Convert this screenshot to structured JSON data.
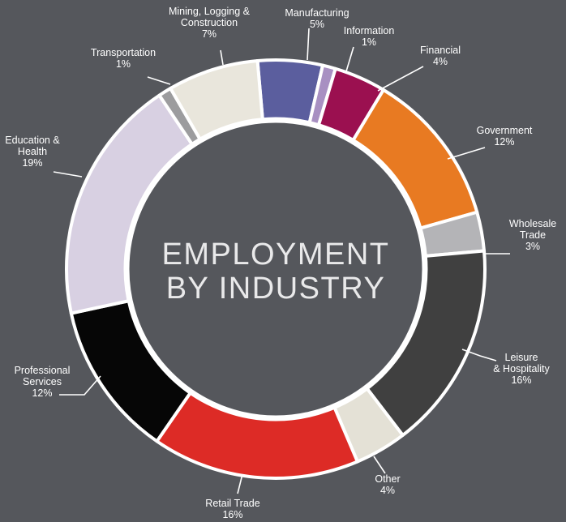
{
  "chart_data": {
    "type": "pie",
    "title_lines": [
      "EMPLOYMENT",
      "BY INDUSTRY"
    ],
    "categories": [
      "Manufacturing",
      "Information",
      "Financial",
      "Government",
      "Wholesale Trade",
      "Leisure & Hospitality",
      "Other",
      "Retail Trade",
      "Professional Services",
      "Education & Health",
      "Transportation",
      "Mining, Logging & Construction"
    ],
    "values": [
      5,
      1,
      4,
      12,
      3,
      16,
      4,
      16,
      12,
      19,
      1,
      7
    ],
    "value_labels": [
      "5%",
      "1%",
      "4%",
      "12%",
      "3%",
      "16%",
      "4%",
      "16%",
      "12%",
      "19%",
      "1%",
      "7%"
    ],
    "label_lines": [
      [
        "Manufacturing"
      ],
      [
        "Information"
      ],
      [
        "Financial"
      ],
      [
        "Government"
      ],
      [
        "Wholesale",
        "Trade"
      ],
      [
        "Leisure",
        "& Hospitality"
      ],
      [
        "Other"
      ],
      [
        "Retail Trade"
      ],
      [
        "Professional",
        "Services"
      ],
      [
        "Education &",
        "Health"
      ],
      [
        "Transportation"
      ],
      [
        "Mining, Logging &",
        "Construction"
      ]
    ],
    "colors": [
      "#5b5e9e",
      "#a890c2",
      "#9b1050",
      "#e87a22",
      "#b4b4b7",
      "#404040",
      "#e4e1d6",
      "#dd2b26",
      "#060606",
      "#d8d0e2",
      "#9c9c9e",
      "#e9e6dc"
    ],
    "legend": "none"
  }
}
